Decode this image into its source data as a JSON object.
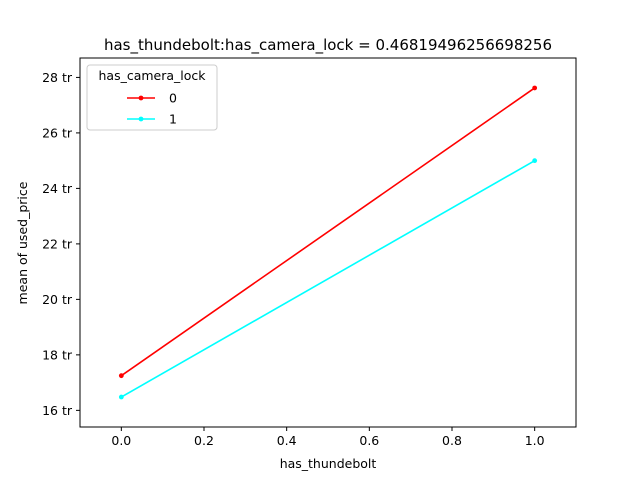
{
  "chart_data": {
    "type": "line",
    "title": "has_thundebolt:has_camera_lock = 0.46819496256698256",
    "xlabel": "has_thundebolt",
    "ylabel": "mean of used_price",
    "x": [
      0.0,
      1.0
    ],
    "xlim": [
      -0.1,
      1.1
    ],
    "ylim": [
      15.4,
      28.7
    ],
    "x_ticks": [
      0.0,
      0.2,
      0.4,
      0.6,
      0.8,
      1.0
    ],
    "x_tick_labels": [
      "0.0",
      "0.2",
      "0.4",
      "0.6",
      "0.8",
      "1.0"
    ],
    "y_ticks": [
      16,
      18,
      20,
      22,
      24,
      26,
      28
    ],
    "y_tick_labels": [
      "16 tr",
      "18 tr",
      "20 tr",
      "22 tr",
      "24 tr",
      "26 tr",
      "28 tr"
    ],
    "grid": false,
    "legend": {
      "title": "has_camera_lock",
      "placement": "top-left"
    },
    "series": [
      {
        "name": "0",
        "values": [
          17.25,
          27.62
        ],
        "color": "#ff0000"
      },
      {
        "name": "1",
        "values": [
          16.48,
          25.0
        ],
        "color": "#00ffff"
      }
    ]
  }
}
